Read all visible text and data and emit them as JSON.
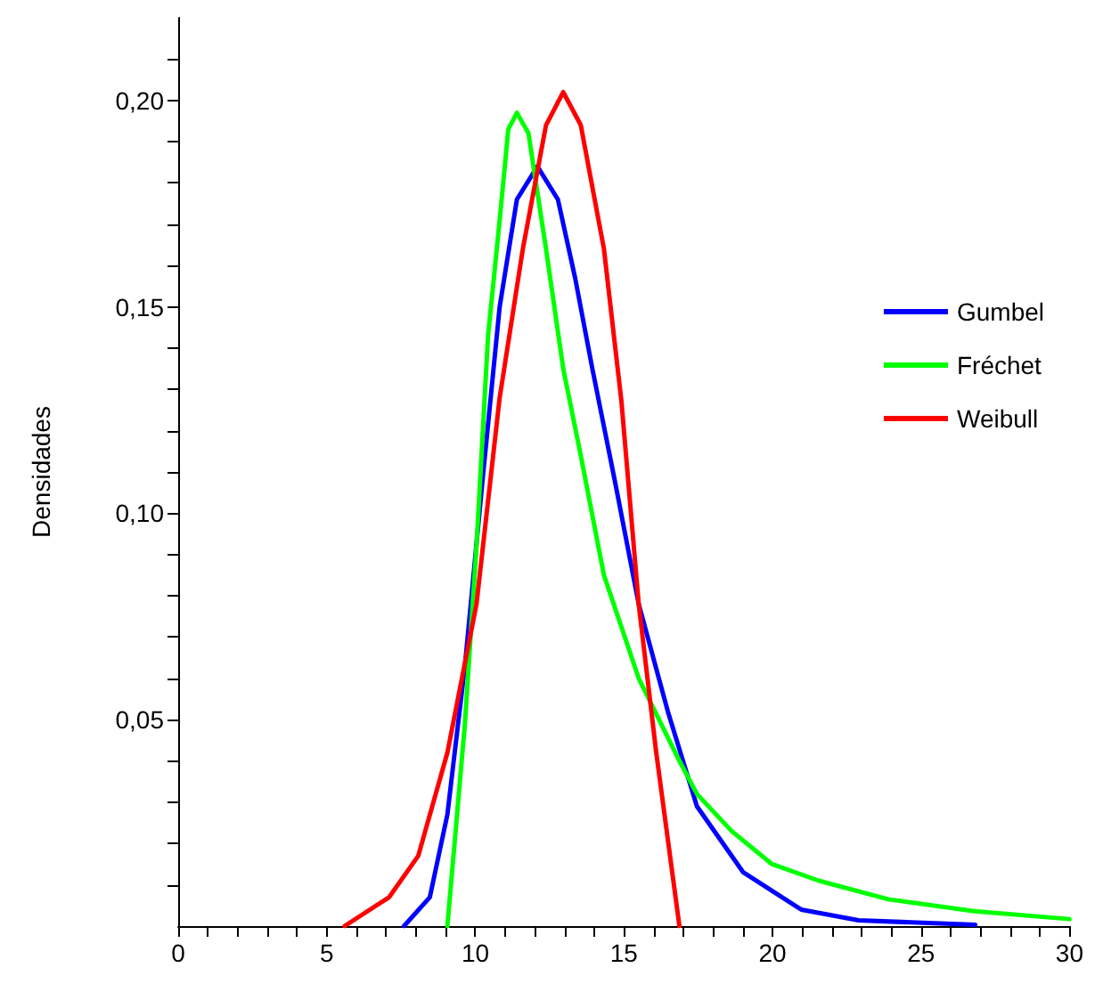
{
  "chart_data": {
    "type": "line",
    "ylabel": "Densidades",
    "xlim": [
      0,
      30
    ],
    "ylim": [
      0,
      0.22
    ],
    "xticks": [
      0,
      {
        "value": 1,
        "label": null
      },
      {
        "value": 2,
        "label": null
      },
      {
        "value": 3,
        "label": null
      },
      {
        "value": 4,
        "label": null
      },
      5,
      {
        "value": 6,
        "label": null
      },
      {
        "value": 7,
        "label": null
      },
      {
        "value": 8,
        "label": null
      },
      {
        "value": 9,
        "label": null
      },
      10,
      {
        "value": 11,
        "label": null
      },
      {
        "value": 12,
        "label": null
      },
      {
        "value": 13,
        "label": null
      },
      {
        "value": 14,
        "label": null
      },
      15,
      {
        "value": 16,
        "label": null
      },
      {
        "value": 17,
        "label": null
      },
      {
        "value": 18,
        "label": null
      },
      {
        "value": 19,
        "label": null
      },
      20,
      {
        "value": 21,
        "label": null
      },
      {
        "value": 22,
        "label": null
      },
      {
        "value": 23,
        "label": null
      },
      {
        "value": 24,
        "label": null
      },
      25,
      {
        "value": 26,
        "label": null
      },
      {
        "value": 27,
        "label": null
      },
      {
        "value": 28,
        "label": null
      },
      {
        "value": 29,
        "label": null
      },
      30
    ],
    "yticks": [
      {
        "value": 0.01,
        "label": null
      },
      {
        "value": 0.02,
        "label": null
      },
      {
        "value": 0.03,
        "label": null
      },
      {
        "value": 0.04,
        "label": null
      },
      {
        "value": 0.05,
        "label": "0,05"
      },
      {
        "value": 0.06,
        "label": null
      },
      {
        "value": 0.07,
        "label": null
      },
      {
        "value": 0.08,
        "label": null
      },
      {
        "value": 0.09,
        "label": null
      },
      {
        "value": 0.1,
        "label": "0,10"
      },
      {
        "value": 0.11,
        "label": null
      },
      {
        "value": 0.12,
        "label": null
      },
      {
        "value": 0.13,
        "label": null
      },
      {
        "value": 0.14,
        "label": null
      },
      {
        "value": 0.15,
        "label": "0,15"
      },
      {
        "value": 0.16,
        "label": null
      },
      {
        "value": 0.17,
        "label": null
      },
      {
        "value": 0.18,
        "label": null
      },
      {
        "value": 0.19,
        "label": null
      },
      {
        "value": 0.2,
        "label": "0,20"
      },
      {
        "value": 0.21,
        "label": null
      }
    ],
    "grid": false,
    "legend": "right",
    "marker": "none",
    "line_style": "solid",
    "series": [
      {
        "name": "Gumbel",
        "color": "#0000ff",
        "x": [
          7.6,
          8.47,
          9.06,
          9.65,
          10.23,
          10.82,
          11.4,
          12.09,
          12.78,
          13.36,
          13.94,
          14.72,
          15.5,
          16.48,
          17.46,
          19.02,
          20.97,
          22.9,
          26.83
        ],
        "values": [
          0,
          0.007,
          0.027,
          0.063,
          0.107,
          0.15,
          0.176,
          0.184,
          0.176,
          0.157,
          0.135,
          0.107,
          0.078,
          0.052,
          0.029,
          0.013,
          0.004,
          0.0014,
          0.0003
        ]
      },
      {
        "name": "Fréchet",
        "color": "#00ff00",
        "x": [
          9.06,
          9.65,
          10.04,
          10.43,
          10.82,
          11.11,
          11.4,
          11.79,
          12.38,
          12.96,
          13.55,
          14.33,
          15.5,
          16.87,
          17.46,
          18.63,
          19.99,
          21.56,
          23.9,
          26.8,
          30
        ],
        "values": [
          0,
          0.049,
          0.092,
          0.143,
          0.171,
          0.193,
          0.197,
          0.192,
          0.164,
          0.135,
          0.114,
          0.085,
          0.06,
          0.04,
          0.032,
          0.023,
          0.015,
          0.011,
          0.0065,
          0.0036,
          0.0017
        ]
      },
      {
        "name": "Weibull",
        "color": "#ff0000",
        "x": [
          5.6,
          7.1,
          8.08,
          9.06,
          10.04,
          10.82,
          11.6,
          12.38,
          12.96,
          13.55,
          14.33,
          14.92,
          15.5,
          16.09,
          16.87
        ],
        "values": [
          0,
          0.007,
          0.017,
          0.042,
          0.078,
          0.128,
          0.164,
          0.194,
          0.202,
          0.194,
          0.164,
          0.127,
          0.078,
          0.042,
          0
        ]
      }
    ]
  }
}
